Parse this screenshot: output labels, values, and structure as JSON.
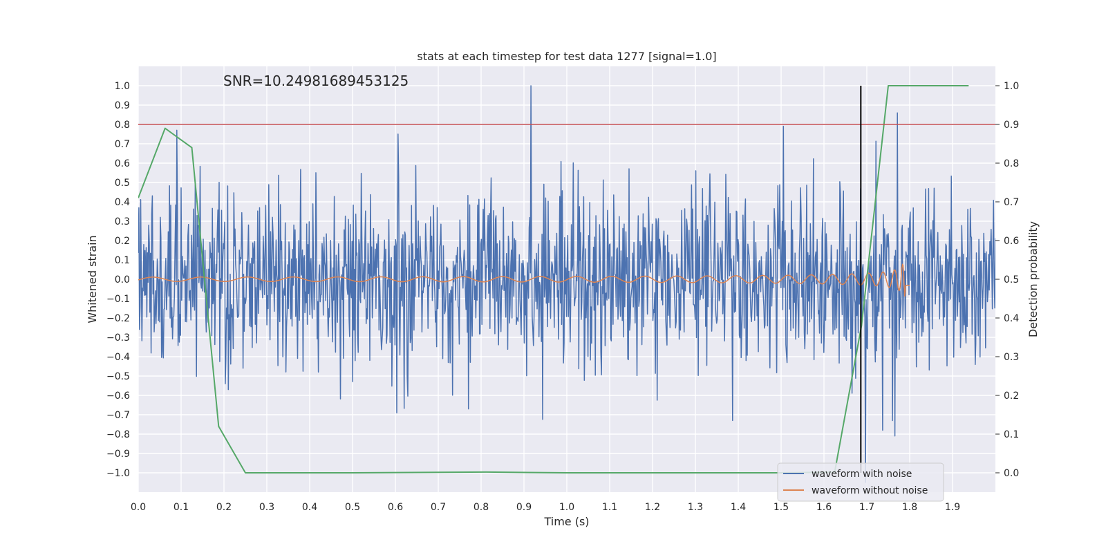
{
  "chart_data": {
    "type": "line",
    "title": "stats at each timestep for test data 1277 [signal=1.0]",
    "annotation": "SNR=10.24981689453125",
    "xlabel": "Time (s)",
    "ylabel": "Whitened strain",
    "y2label": "Detection probability",
    "xlim": [
      0.0,
      2.0
    ],
    "ylim": [
      -1.1,
      1.1
    ],
    "y2lim": [
      -0.05,
      1.05
    ],
    "grid": true,
    "x_ticks": [
      "0.0",
      "0.1",
      "0.2",
      "0.3",
      "0.4",
      "0.5",
      "0.6",
      "0.7",
      "0.8",
      "0.9",
      "1.0",
      "1.1",
      "1.2",
      "1.3",
      "1.4",
      "1.5",
      "1.6",
      "1.7",
      "1.8",
      "1.9"
    ],
    "y_ticks": [
      "1.0",
      "0.9",
      "0.8",
      "0.7",
      "0.6",
      "0.5",
      "0.4",
      "0.3",
      "0.2",
      "0.1",
      "0.0",
      "−0.1",
      "−0.2",
      "−0.3",
      "−0.4",
      "−0.5",
      "−0.6",
      "−0.7",
      "−0.8",
      "−0.9",
      "−1.0"
    ],
    "y2_ticks": [
      "1.0",
      "0.9",
      "0.8",
      "0.7",
      "0.6",
      "0.5",
      "0.4",
      "0.3",
      "0.2",
      "0.1",
      "0.0"
    ],
    "threshold": {
      "y": 0.8,
      "color": "#c44e52"
    },
    "marker": {
      "x": 1.686,
      "color": "#000000"
    },
    "series": [
      {
        "name": "waveform with noise",
        "color": "#4c72b0",
        "axis": "left",
        "generated": {
          "x_start": 0.0,
          "x_end": 2.0,
          "n": 1400,
          "seed": 1277,
          "noise_std": 0.22,
          "clip": 1.0,
          "spikes": [
            [
              0.09,
              0.77
            ],
            [
              0.21,
              -0.57
            ],
            [
              0.603,
              -0.69
            ],
            [
              0.606,
              0.75
            ],
            [
              0.77,
              -0.67
            ],
            [
              0.917,
              1.0
            ],
            [
              1.387,
              -0.73
            ],
            [
              1.697,
              -1.05
            ],
            [
              1.737,
              -0.78
            ],
            [
              1.766,
              -0.81
            ],
            [
              1.771,
              0.86
            ]
          ]
        }
      },
      {
        "name": "waveform without noise",
        "color": "#dd8452",
        "axis": "left",
        "generated": {
          "x_start": 0.0,
          "x_end": 1.8,
          "n": 1400,
          "chirp_tc": 1.79,
          "freq_scale": 6.8,
          "amp_base": 0.011,
          "amp_peak": 0.52
        }
      },
      {
        "name": "detection probability",
        "color": "#55a868",
        "axis": "right",
        "x": [
          0.0,
          0.0625,
          0.125,
          0.1875,
          0.25,
          0.5,
          0.8125,
          1.0,
          1.25,
          1.5,
          1.625,
          1.6875,
          1.75,
          1.9375
        ],
        "values": [
          0.71,
          0.89,
          0.84,
          0.12,
          0.0,
          0.0,
          0.002,
          0.0,
          0.0,
          0.0,
          0.002,
          0.38,
          1.0,
          1.0
        ]
      }
    ],
    "legend": {
      "location": "lower-right",
      "entries": [
        {
          "label": "waveform with noise",
          "color": "#4c72b0"
        },
        {
          "label": "waveform without noise",
          "color": "#dd8452"
        }
      ]
    }
  }
}
